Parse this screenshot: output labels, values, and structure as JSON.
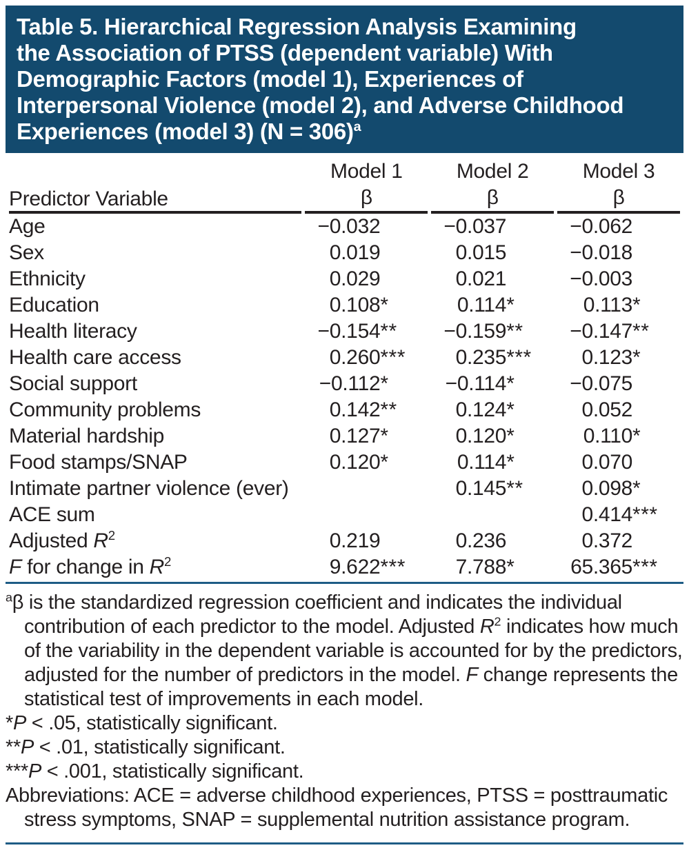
{
  "colors": {
    "banner_background": "#134a6e",
    "banner_text": "#ffffff",
    "body_text": "#231f20",
    "header_rule_black": "#231f20",
    "table_rule_blue": "#1e5c85"
  },
  "title": {
    "lines": [
      "Table 5. Hierarchical Regression Analysis Examining",
      "the Association of PTSS (dependent variable) With",
      "Demographic Factors (model 1), Experiences of",
      "Interpersonal Violence (model 2), and Adverse Childhood",
      "Experiences (model 3) (N = 306)"
    ],
    "footnote_mark": "a"
  },
  "table": {
    "stub_header": "Predictor Variable",
    "column_groups": [
      "Model 1",
      "Model 2",
      "Model 3"
    ],
    "beta_symbol": "β",
    "rows": [
      {
        "label": "Age",
        "m1": "−0.032",
        "m1s": "",
        "m2": "−0.037",
        "m2s": "",
        "m3": "−0.062",
        "m3s": ""
      },
      {
        "label": "Sex",
        "m1": "0.019",
        "m1s": "",
        "m2": "0.015",
        "m2s": "",
        "m3": "−0.018",
        "m3s": ""
      },
      {
        "label": "Ethnicity",
        "m1": "0.029",
        "m1s": "",
        "m2": "0.021",
        "m2s": "",
        "m3": "−0.003",
        "m3s": ""
      },
      {
        "label": "Education",
        "m1": "0.108",
        "m1s": "*",
        "m2": "0.114",
        "m2s": "*",
        "m3": "0.113",
        "m3s": "*"
      },
      {
        "label": "Health literacy",
        "m1": "−0.154",
        "m1s": "**",
        "m2": "−0.159",
        "m2s": "**",
        "m3": "−0.147",
        "m3s": "**"
      },
      {
        "label": "Health care access",
        "m1": "0.260",
        "m1s": "***",
        "m2": "0.235",
        "m2s": "***",
        "m3": "0.123",
        "m3s": "*"
      },
      {
        "label": "Social support",
        "m1": "−0.112",
        "m1s": "*",
        "m2": "−0.114",
        "m2s": "*",
        "m3": "−0.075",
        "m3s": ""
      },
      {
        "label": "Community problems",
        "m1": "0.142",
        "m1s": "**",
        "m2": "0.124",
        "m2s": "*",
        "m3": "0.052",
        "m3s": ""
      },
      {
        "label": "Material hardship",
        "m1": "0.127",
        "m1s": "*",
        "m2": "0.120",
        "m2s": "*",
        "m3": "0.110",
        "m3s": "*"
      },
      {
        "label": "Food stamps/SNAP",
        "m1": "0.120",
        "m1s": "*",
        "m2": "0.114",
        "m2s": "*",
        "m3": "0.070",
        "m3s": ""
      },
      {
        "label": "Intimate partner violence (ever)",
        "m1": "",
        "m1s": "",
        "m2": "0.145",
        "m2s": "**",
        "m3": "0.098",
        "m3s": "*"
      },
      {
        "label": "ACE sum",
        "m1": "",
        "m1s": "",
        "m2": "",
        "m2s": "",
        "m3": "0.414",
        "m3s": "***"
      },
      {
        "label_pre": "Adjusted ",
        "label_it": "R",
        "label_sup": "2",
        "m1": "0.219",
        "m1s": "",
        "m2": "0.236",
        "m2s": "",
        "m3": "0.372",
        "m3s": ""
      },
      {
        "label_f": "F",
        "label_mid": " for change in ",
        "label_r": "R",
        "label_sup": "2",
        "m1": "9.622",
        "m1s": "***",
        "m2": "7.788",
        "m2s": "*",
        "m3": "65.365",
        "m3s": "***"
      }
    ]
  },
  "footnotes": {
    "a": {
      "mark": "a",
      "t1": "β is the standardized regression coefficient and indicates the individual contribution of each predictor to the model. Adjusted ",
      "it1": "R",
      "sup1": "2",
      "t2": " indicates how much of the variability in the dependent variable is accounted for by the predictors, adjusted for the number of predictors in the model. ",
      "it2": "F",
      "t3": " change represents the statistical test of improvements in each model."
    },
    "sig": [
      {
        "stars": "*",
        "p": "P",
        "text": " < .05, statistically significant."
      },
      {
        "stars": "**",
        "p": "P",
        "text": " < .01, statistically significant."
      },
      {
        "stars": "***",
        "p": "P",
        "text": " < .001, statistically significant."
      }
    ],
    "abbreviations": "Abbreviations: ACE = adverse childhood experiences, PTSS = posttraumatic stress symptoms, SNAP = supplemental nutrition assistance program."
  }
}
